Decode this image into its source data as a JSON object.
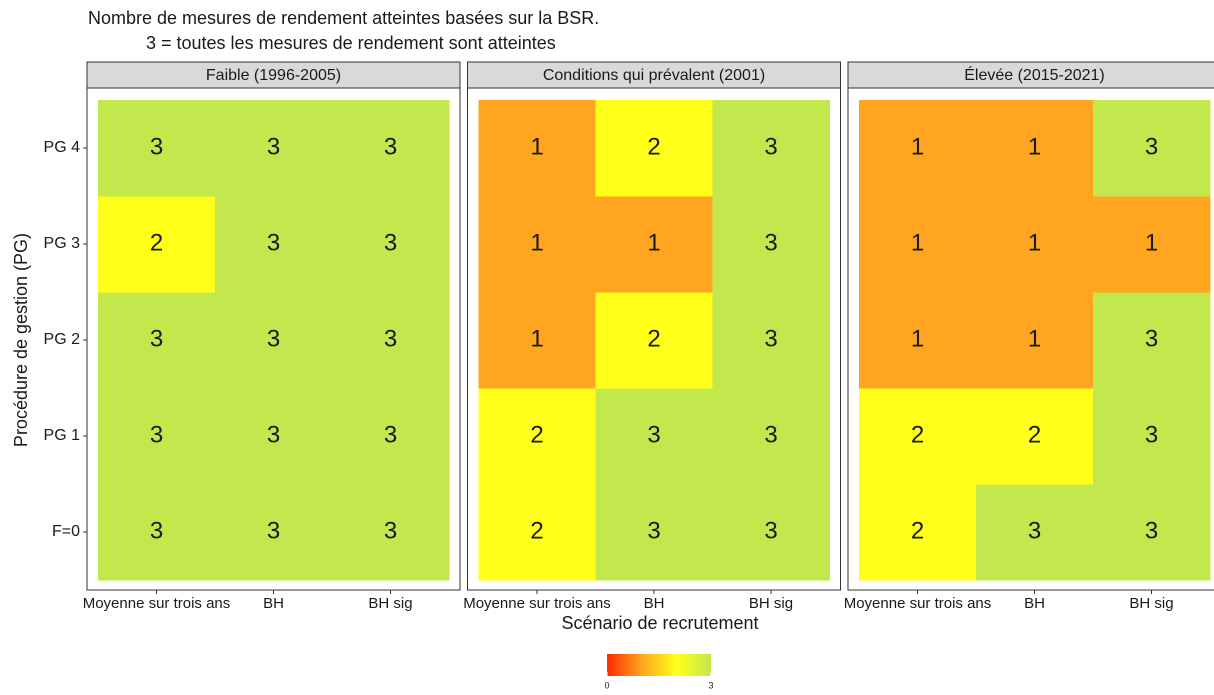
{
  "chart_data": {
    "type": "heatmap",
    "title": "Nombre de mesures de rendement atteintes basées sur la BSR.",
    "subtitle": "3 = toutes les mesures de rendement sont atteintes",
    "xlabel": "Scénario de recrutement",
    "ylabel": "Procédure de gestion (PG)",
    "categories": [
      "Moyenne sur trois ans",
      "BH",
      "BH sig"
    ],
    "rows": [
      "F=0",
      "PG 1",
      "PG 2",
      "PG 3",
      "PG 4"
    ],
    "panels": [
      {
        "name": "Faible (1996-2005)",
        "values": [
          [
            3,
            3,
            3
          ],
          [
            3,
            3,
            3
          ],
          [
            3,
            3,
            3
          ],
          [
            2,
            3,
            3
          ],
          [
            3,
            3,
            3
          ]
        ]
      },
      {
        "name": "Conditions qui prévalent (2001)",
        "values": [
          [
            2,
            3,
            3
          ],
          [
            2,
            3,
            3
          ],
          [
            1,
            2,
            3
          ],
          [
            1,
            1,
            3
          ],
          [
            1,
            2,
            3
          ]
        ]
      },
      {
        "name": "Élevée (2015-2021)",
        "values": [
          [
            2,
            3,
            3
          ],
          [
            2,
            2,
            3
          ],
          [
            1,
            1,
            3
          ],
          [
            1,
            1,
            1
          ],
          [
            1,
            1,
            3
          ]
        ]
      }
    ],
    "clim": [
      0,
      3
    ],
    "cticks": [
      0,
      3
    ],
    "colors": [
      "#ff2a00",
      "#ffa51f",
      "#ffff1a",
      "#c3e84d"
    ]
  }
}
